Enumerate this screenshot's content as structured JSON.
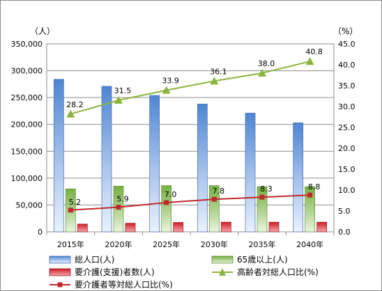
{
  "colors": {
    "total": "#5b8fd6",
    "elderly": "#7fb548",
    "care": "#d21f2b",
    "aging_line": "#8cb43c",
    "care_line": "#c0282d",
    "grid": "#8c8c8c",
    "axis": "#8c8c8c"
  },
  "chart_data": {
    "type": "bar",
    "categories": [
      "2015年",
      "2020年",
      "2025年",
      "2030年",
      "2035年",
      "2040年"
    ],
    "y_left": {
      "unit": "（人）",
      "range": [
        0,
        350000
      ],
      "ticks": [
        "0",
        "50,000",
        "100,000",
        "150,000",
        "200,000",
        "250,000",
        "300,000",
        "350,000"
      ]
    },
    "y_right": {
      "unit": "（%）",
      "range": [
        0,
        45
      ],
      "ticks": [
        "0.0",
        "5.0",
        "10.0",
        "15.0",
        "20.0",
        "25.0",
        "30.0",
        "35.0",
        "40.0",
        "45.0"
      ]
    },
    "grid": true,
    "legend_position": "bottom",
    "series": [
      {
        "name": "総人口(人)",
        "type": "bar",
        "axis": "left",
        "values": [
          284000,
          271000,
          254000,
          238000,
          221000,
          203000
        ]
      },
      {
        "name": "65歳以上(人)",
        "type": "bar",
        "axis": "left",
        "values": [
          80000,
          85000,
          86000,
          86000,
          84000,
          84000
        ]
      },
      {
        "name": "要介護(支援)者数(人)",
        "type": "bar",
        "axis": "left",
        "values": [
          14500,
          16000,
          17500,
          18000,
          18000,
          18000
        ]
      },
      {
        "name": "高齢者対総人口比(%)",
        "type": "line",
        "axis": "right",
        "values": [
          28.2,
          31.5,
          33.9,
          36.1,
          38.0,
          40.8
        ],
        "labels": [
          "28.2",
          "31.5",
          "33.9",
          "36.1",
          "38.0",
          "40.8"
        ]
      },
      {
        "name": "要介護者等対総人口比(%)",
        "type": "line",
        "axis": "right",
        "values": [
          5.2,
          5.9,
          7.0,
          7.8,
          8.3,
          8.8
        ],
        "labels": [
          "5.2",
          "5.9",
          "7.0",
          "7.8",
          "8.3",
          "8.8"
        ]
      }
    ]
  }
}
